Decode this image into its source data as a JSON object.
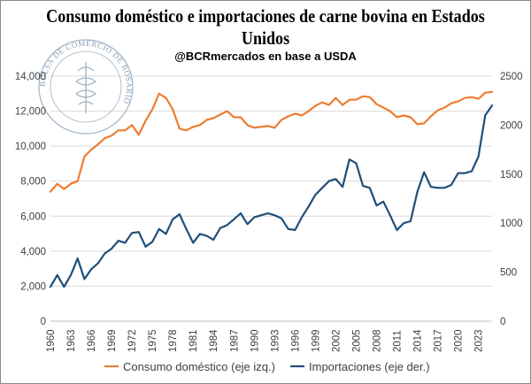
{
  "chart_data": {
    "type": "line",
    "title": "Consumo doméstico e importaciones de carne bovina en Estados Unidos",
    "subtitle": "@BCRmercados en base a USDA",
    "watermark_text": "BOLSA DE COMERCIO DE ROSARIO",
    "x": [
      1960,
      1961,
      1962,
      1963,
      1964,
      1965,
      1966,
      1967,
      1968,
      1969,
      1970,
      1971,
      1972,
      1973,
      1974,
      1975,
      1976,
      1977,
      1978,
      1979,
      1980,
      1981,
      1982,
      1983,
      1984,
      1985,
      1986,
      1987,
      1988,
      1989,
      1990,
      1991,
      1992,
      1993,
      1994,
      1995,
      1996,
      1997,
      1998,
      1999,
      2000,
      2001,
      2002,
      2003,
      2004,
      2005,
      2006,
      2007,
      2008,
      2009,
      2010,
      2011,
      2012,
      2013,
      2014,
      2015,
      2016,
      2017,
      2018,
      2019,
      2020,
      2021,
      2022,
      2023,
      2024,
      2025
    ],
    "x_tick_labels": [
      "1960",
      "1963",
      "1966",
      "1969",
      "1972",
      "1975",
      "1978",
      "1981",
      "1984",
      "1987",
      "1990",
      "1993",
      "1996",
      "1999",
      "2002",
      "2005",
      "2008",
      "2011",
      "2014",
      "2017",
      "2020",
      "2023"
    ],
    "y_left_ticks": [
      "0",
      "2,000",
      "4,000",
      "6,000",
      "8,000",
      "10,000",
      "12,000",
      "14,000"
    ],
    "y_right_ticks": [
      "0",
      "500",
      "1000",
      "1500",
      "2000",
      "2500"
    ],
    "ylim_left": [
      0,
      14000
    ],
    "ylim_right": [
      0,
      2500
    ],
    "grid": "horizontal",
    "legend_position": "bottom",
    "series": [
      {
        "name": "Consumo doméstico (eje izq.)",
        "axis": "left",
        "color": "#ed7d31",
        "values": [
          7400,
          7850,
          7550,
          7850,
          8000,
          9400,
          9800,
          10100,
          10450,
          10600,
          10900,
          10900,
          11200,
          10650,
          11450,
          12100,
          13000,
          12750,
          12100,
          11000,
          10900,
          11100,
          11200,
          11500,
          11600,
          11800,
          12000,
          11650,
          11650,
          11200,
          11050,
          11100,
          11150,
          11050,
          11500,
          11700,
          11850,
          11750,
          12000,
          12300,
          12500,
          12350,
          12750,
          12350,
          12650,
          12650,
          12850,
          12800,
          12400,
          12200,
          12000,
          11650,
          11750,
          11650,
          11250,
          11300,
          11700,
          12050,
          12200,
          12450,
          12550,
          12750,
          12800,
          12700,
          13050,
          13100
        ]
      },
      {
        "name": "Importaciones (eje der.)",
        "axis": "right",
        "color": "#1f4e79",
        "values": [
          350,
          470,
          350,
          470,
          640,
          430,
          530,
          590,
          690,
          740,
          820,
          800,
          900,
          910,
          760,
          810,
          940,
          890,
          1040,
          1090,
          940,
          800,
          890,
          870,
          830,
          950,
          980,
          1040,
          1100,
          990,
          1060,
          1080,
          1100,
          1080,
          1050,
          940,
          930,
          1060,
          1170,
          1290,
          1360,
          1430,
          1450,
          1370,
          1650,
          1610,
          1380,
          1360,
          1180,
          1220,
          1080,
          930,
          1000,
          1020,
          1320,
          1520,
          1370,
          1360,
          1360,
          1390,
          1510,
          1510,
          1530,
          1680,
          2100,
          2200
        ]
      }
    ]
  }
}
